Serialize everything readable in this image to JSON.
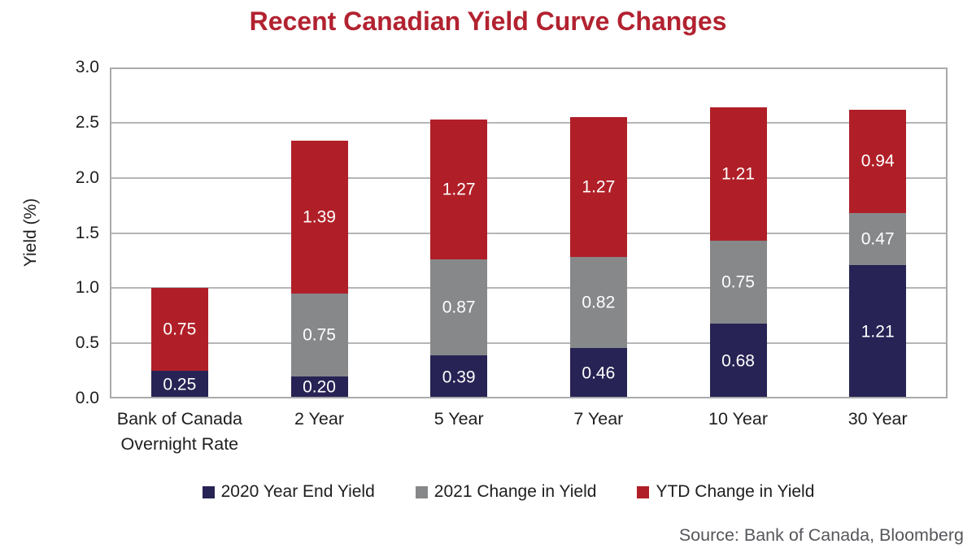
{
  "title": "Recent Canadian Yield Curve Changes",
  "source": "Source: Bank of Canada, Bloomberg",
  "colors": {
    "navy": "#272354",
    "gray": "#87888A",
    "red": "#B01F27",
    "title_red": "#B22230",
    "axis_text": "#1E1E1E",
    "source_text": "#56575B",
    "grid": "#B5B6B8",
    "border": "#A9AAAC",
    "label_text": "#FFFFFF"
  },
  "chart_data": {
    "type": "bar",
    "stacked": true,
    "title": "Recent Canadian Yield Curve Changes",
    "xlabel": "",
    "ylabel": "Yield (%)",
    "ylim": [
      0,
      3.0
    ],
    "yticks": [
      "0.0",
      "0.5",
      "1.0",
      "1.5",
      "2.0",
      "2.5",
      "3.0"
    ],
    "gridline_values": [
      0.5,
      1.0,
      1.5,
      2.0,
      2.5
    ],
    "grid": true,
    "legend_position": "bottom",
    "categories": [
      "Bank of Canada\nOvernight Rate",
      "2 Year",
      "5 Year",
      "7 Year",
      "10 Year",
      "30 Year"
    ],
    "series": [
      {
        "name": "2020 Year End Yield",
        "color_key": "navy",
        "values": [
          0.25,
          0.2,
          0.39,
          0.46,
          0.68,
          1.21
        ]
      },
      {
        "name": "2021 Change in Yield",
        "color_key": "gray",
        "values": [
          0.0,
          0.75,
          0.87,
          0.82,
          0.75,
          0.47
        ]
      },
      {
        "name": "YTD Change in Yield",
        "color_key": "red",
        "values": [
          0.75,
          1.39,
          1.27,
          1.27,
          1.21,
          0.94
        ]
      }
    ],
    "totals": [
      1.0,
      2.34,
      2.53,
      2.55,
      2.64,
      2.62
    ]
  }
}
